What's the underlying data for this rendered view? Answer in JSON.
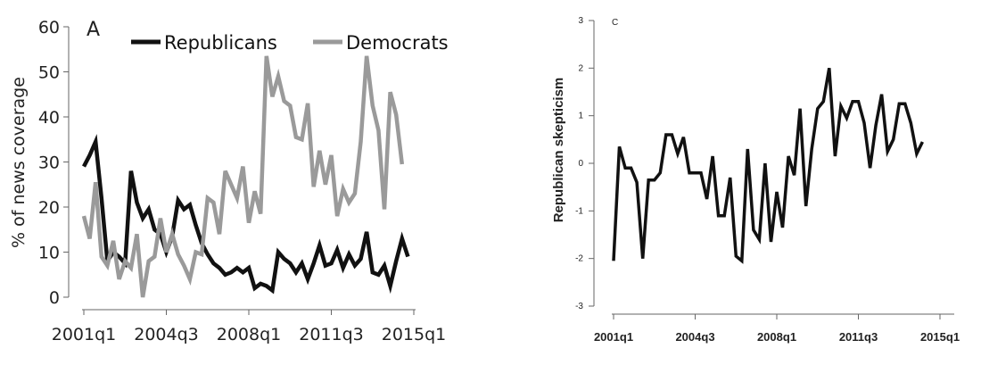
{
  "chart_data": [
    {
      "type": "line",
      "panel_label": "A",
      "ylabel": "% of news coverage",
      "xlabel": "",
      "x_tick_labels": [
        "2001q1",
        "2004q3",
        "2008q1",
        "2011q3",
        "2015q1"
      ],
      "y_tick_labels": [
        "0",
        "10",
        "20",
        "30",
        "40",
        "50",
        "60"
      ],
      "ylim": [
        0,
        60
      ],
      "legend_position": "top",
      "series": [
        {
          "name": "Republicans",
          "color": "#111111",
          "values": [
            29,
            31.5,
            34.5,
            22,
            8,
            10,
            9,
            7.5,
            28,
            21,
            17.5,
            19.5,
            15,
            14,
            10,
            13.5,
            21.5,
            19.5,
            20.5,
            16,
            12,
            9.5,
            7.5,
            6.5,
            5,
            5.5,
            6.5,
            5.5,
            6.5,
            2,
            3,
            2.5,
            1.5,
            10,
            8.5,
            7.5,
            5.5,
            7.5,
            4,
            7.5,
            11.5,
            7,
            7.5,
            10.5,
            6.5,
            9.5,
            7,
            8.5,
            14.5,
            5.5,
            5,
            7,
            2.5,
            8,
            13,
            9
          ]
        },
        {
          "name": "Democrats",
          "color": "#9a9a9a",
          "values": [
            18,
            13,
            25.5,
            9,
            7,
            12.5,
            4,
            8,
            6.5,
            14,
            0,
            8,
            9,
            17.5,
            10,
            14,
            9.5,
            7,
            4,
            10,
            9.5,
            22,
            21,
            14,
            28,
            25,
            22,
            29,
            16.5,
            23.5,
            18.5,
            53.5,
            44.5,
            49,
            43.5,
            42.5,
            35.5,
            35,
            43,
            24.5,
            32.5,
            25,
            31.5,
            18,
            24,
            21,
            23,
            34.5,
            53.5,
            42.5,
            37,
            19.5,
            45.5,
            40.5,
            29.5
          ]
        }
      ]
    },
    {
      "type": "line",
      "panel_label": "C",
      "ylabel": "Republican skepticism",
      "xlabel": "",
      "x_tick_labels": [
        "2001q1",
        "2004q3",
        "2008q1",
        "2011q3",
        "2015q1"
      ],
      "y_tick_labels": [
        "-3",
        "-2",
        "-1",
        "0",
        "1",
        "2",
        "3"
      ],
      "ylim": [
        -3,
        3
      ],
      "series": [
        {
          "name": "",
          "color": "#111111",
          "values": [
            -2.05,
            0.35,
            -0.1,
            -0.1,
            -0.4,
            -2.0,
            -0.35,
            -0.35,
            -0.2,
            0.6,
            0.6,
            0.2,
            0.55,
            -0.2,
            -0.2,
            -0.2,
            -0.75,
            0.15,
            -1.1,
            -1.1,
            -0.3,
            -1.95,
            -2.05,
            0.3,
            -1.4,
            -1.6,
            0.0,
            -1.65,
            -0.6,
            -1.35,
            0.15,
            -0.25,
            1.15,
            -0.9,
            0.3,
            1.15,
            1.3,
            2.0,
            0.15,
            1.2,
            0.95,
            1.3,
            1.3,
            0.85,
            -0.1,
            0.8,
            1.45,
            0.25,
            0.5,
            1.25,
            1.25,
            0.85,
            0.2,
            0.45
          ]
        }
      ]
    }
  ]
}
